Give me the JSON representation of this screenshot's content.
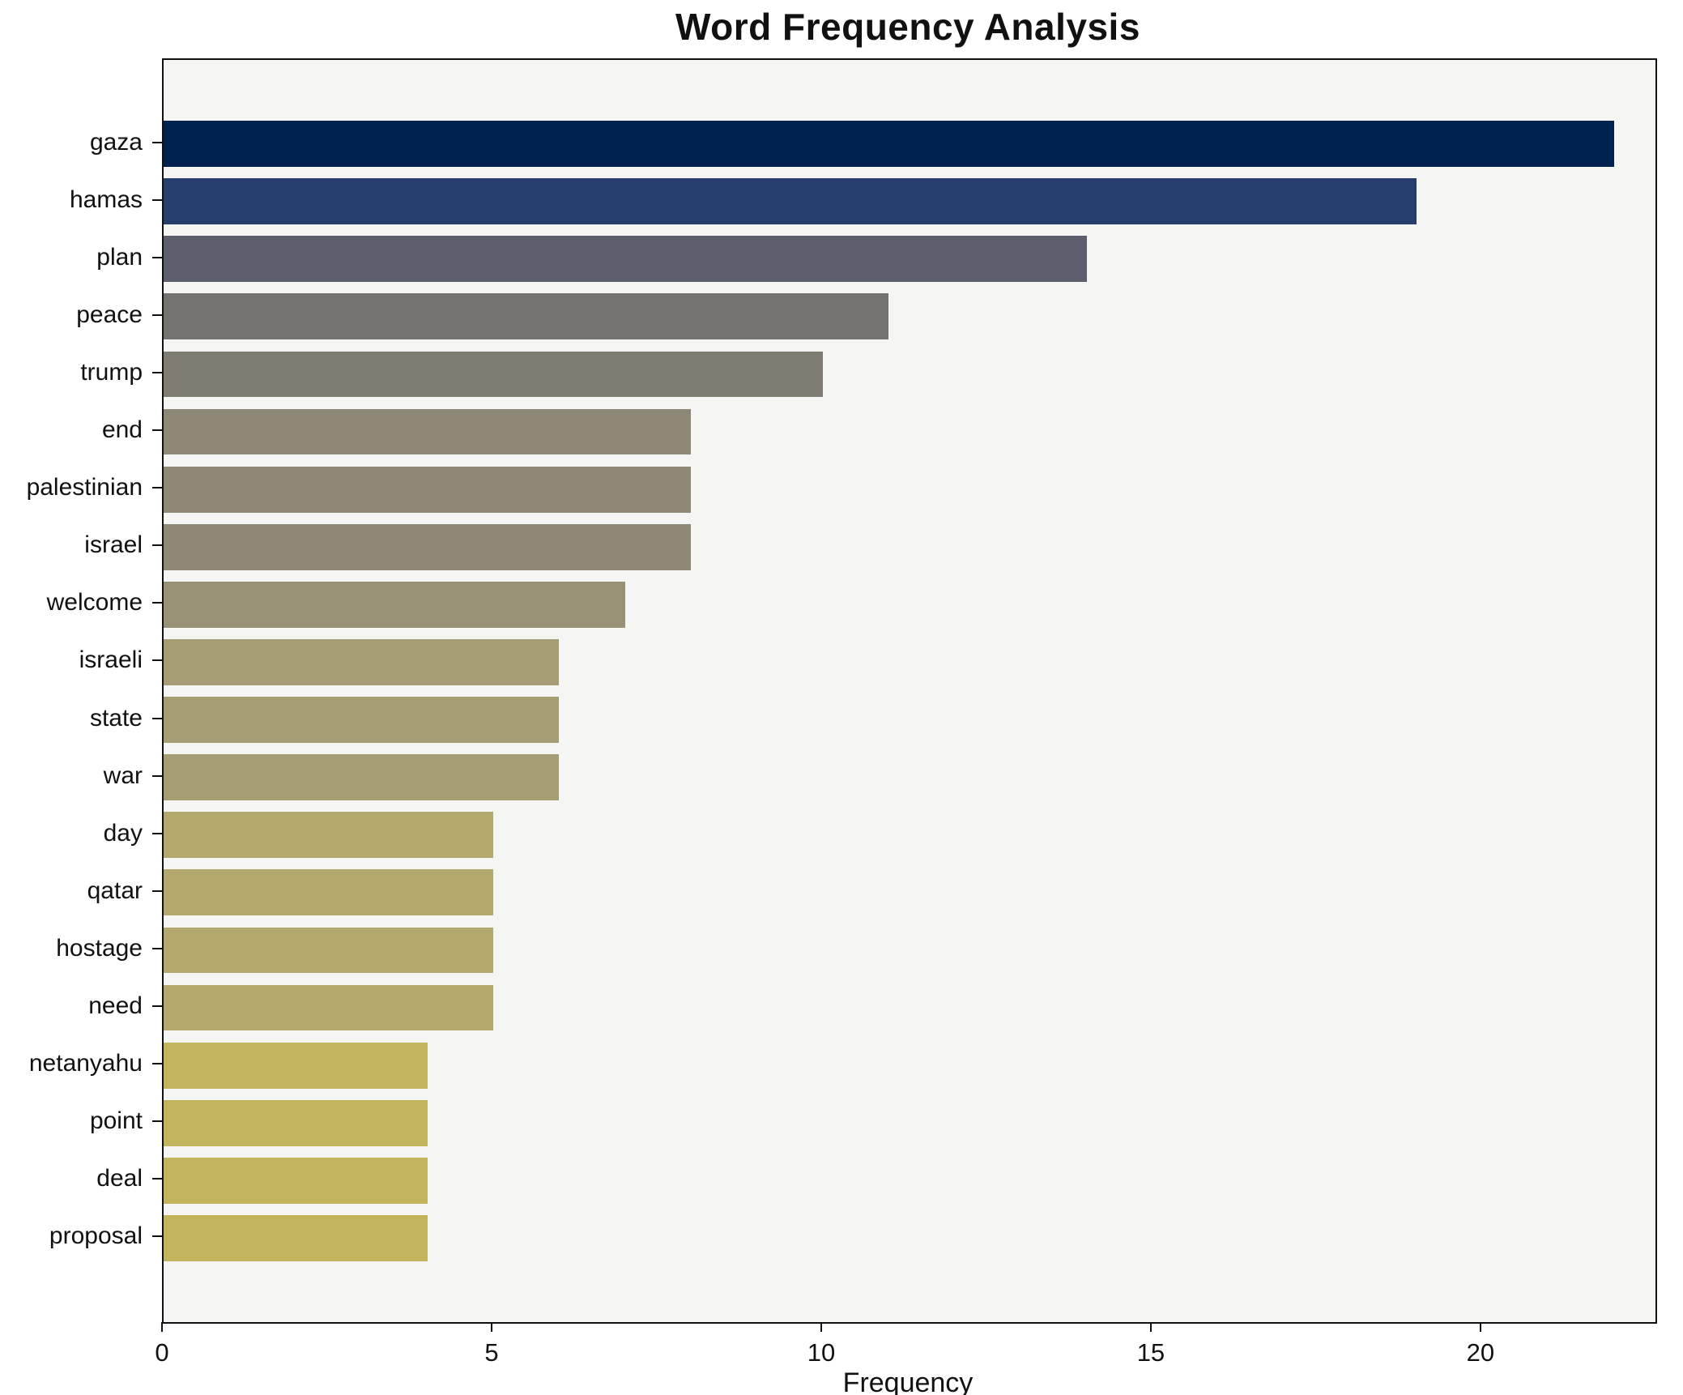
{
  "chart_data": {
    "type": "bar",
    "orientation": "horizontal",
    "title": "Word Frequency Analysis",
    "xlabel": "Frequency",
    "ylabel": "",
    "categories": [
      "gaza",
      "hamas",
      "plan",
      "peace",
      "trump",
      "end",
      "palestinian",
      "israel",
      "welcome",
      "israeli",
      "state",
      "war",
      "day",
      "qatar",
      "hostage",
      "need",
      "netanyahu",
      "point",
      "deal",
      "proposal"
    ],
    "values": [
      22,
      19,
      14,
      11,
      10,
      8,
      8,
      8,
      7,
      6,
      6,
      6,
      5,
      5,
      5,
      5,
      4,
      4,
      4,
      4
    ],
    "colors": [
      "#00224e",
      "#253e6c",
      "#5c5e6e",
      "#757370",
      "#7f7c72",
      "#8d8976",
      "#8d8976",
      "#8d8976",
      "#989175",
      "#a79d74",
      "#a79d74",
      "#a79d74",
      "#b3a86e",
      "#b3a86e",
      "#b3a86e",
      "#b3a86e",
      "#c2b45d",
      "#c2b45d",
      "#c2b45d",
      "#c2b45d"
    ],
    "xlim": [
      0,
      22.63
    ],
    "xticks": [
      0,
      5,
      10,
      15,
      20
    ],
    "xtick_labels": [
      "0",
      "5",
      "10",
      "15",
      "20"
    ],
    "grid": false,
    "legend": "none",
    "plot_background": "#f5f5f4",
    "colormap_note": "cividis reversed by value (high=dark navy, low=khaki yellow)"
  }
}
